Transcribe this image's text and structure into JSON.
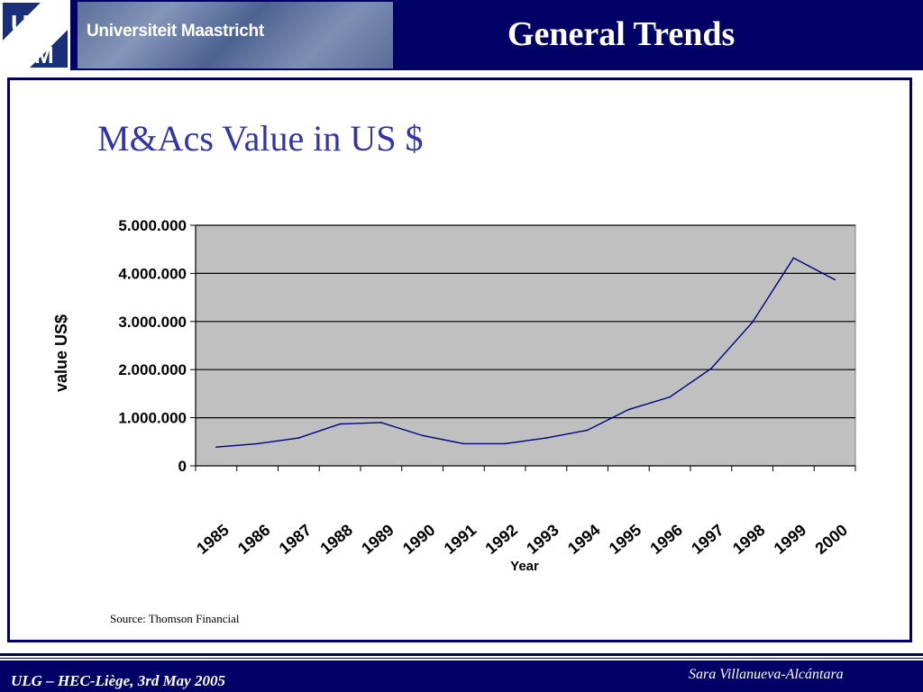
{
  "header": {
    "logo_letters": [
      "U",
      "M"
    ],
    "banner_text": "Universiteit Maastricht",
    "title": "General Trends"
  },
  "footer": {
    "left": "ULG – HEC-Liège, 3rd May 2005",
    "right": "Sara Villanueva-Alcántara"
  },
  "source": "Source: Thomson Financial",
  "colors": {
    "navy": "#000066",
    "title_blue": "#3333aa",
    "plot_bg": "#c0c0c0",
    "line": "#000080"
  },
  "chart_data": {
    "type": "line",
    "title": "M&Acs Value in US $",
    "xlabel": "Year",
    "ylabel": "value US$",
    "categories": [
      "1985",
      "1986",
      "1987",
      "1988",
      "1989",
      "1990",
      "1991",
      "1992",
      "1993",
      "1994",
      "1995",
      "1996",
      "1997",
      "1998",
      "1999",
      "2000"
    ],
    "series": [
      {
        "values": [
          390000,
          460000,
          580000,
          870000,
          900000,
          630000,
          460000,
          460000,
          580000,
          740000,
          1170000,
          1430000,
          2020000,
          2980000,
          4320000,
          3870000
        ]
      }
    ],
    "ylim": [
      0,
      5000000
    ],
    "yticks": [
      0,
      1000000,
      2000000,
      3000000,
      4000000,
      5000000
    ],
    "ytick_labels": [
      "0",
      "1.000.000",
      "2.000.000",
      "3.000.000",
      "4.000.000",
      "5.000.000"
    ],
    "grid": true,
    "legend": "none"
  }
}
